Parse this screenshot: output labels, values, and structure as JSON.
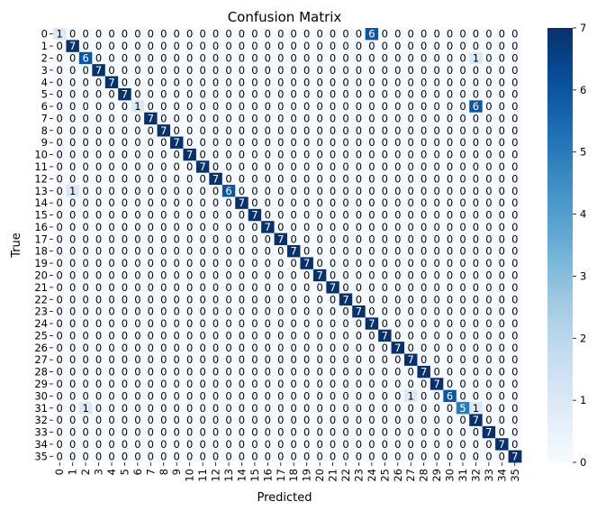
{
  "chart_data": {
    "type": "heatmap",
    "title": "Confusion Matrix",
    "xlabel": "Predicted",
    "ylabel": "True",
    "x_tick_labels": [
      "0",
      "1",
      "2",
      "3",
      "4",
      "5",
      "6",
      "7",
      "8",
      "9",
      "10",
      "11",
      "12",
      "13",
      "14",
      "15",
      "16",
      "17",
      "18",
      "19",
      "20",
      "21",
      "22",
      "23",
      "24",
      "25",
      "26",
      "27",
      "28",
      "29",
      "30",
      "31",
      "32",
      "33",
      "34",
      "35"
    ],
    "y_tick_labels": [
      "0",
      "1",
      "2",
      "3",
      "4",
      "5",
      "6",
      "7",
      "8",
      "9",
      "10",
      "11",
      "12",
      "13",
      "14",
      "15",
      "16",
      "17",
      "18",
      "19",
      "20",
      "21",
      "22",
      "23",
      "24",
      "25",
      "26",
      "27",
      "28",
      "29",
      "30",
      "31",
      "32",
      "33",
      "34",
      "35"
    ],
    "value_range": [
      0,
      7
    ],
    "colormap": "Blues",
    "colorbar_ticks": [
      "0",
      "1",
      "2",
      "3",
      "4",
      "5",
      "6",
      "7"
    ],
    "diagonal_default": 7,
    "diagonal_overrides": [
      {
        "row": 0,
        "value": 1
      },
      {
        "row": 2,
        "value": 6
      },
      {
        "row": 6,
        "value": 1
      },
      {
        "row": 13,
        "value": 6
      },
      {
        "row": 30,
        "value": 6
      },
      {
        "row": 31,
        "value": 5
      }
    ],
    "off_diagonal": [
      {
        "row": 0,
        "col": 24,
        "value": 6
      },
      {
        "row": 2,
        "col": 32,
        "value": 1
      },
      {
        "row": 6,
        "col": 32,
        "value": 6
      },
      {
        "row": 13,
        "col": 1,
        "value": 1
      },
      {
        "row": 30,
        "col": 27,
        "value": 1
      },
      {
        "row": 31,
        "col": 2,
        "value": 1
      },
      {
        "row": 31,
        "col": 32,
        "value": 1
      }
    ]
  }
}
